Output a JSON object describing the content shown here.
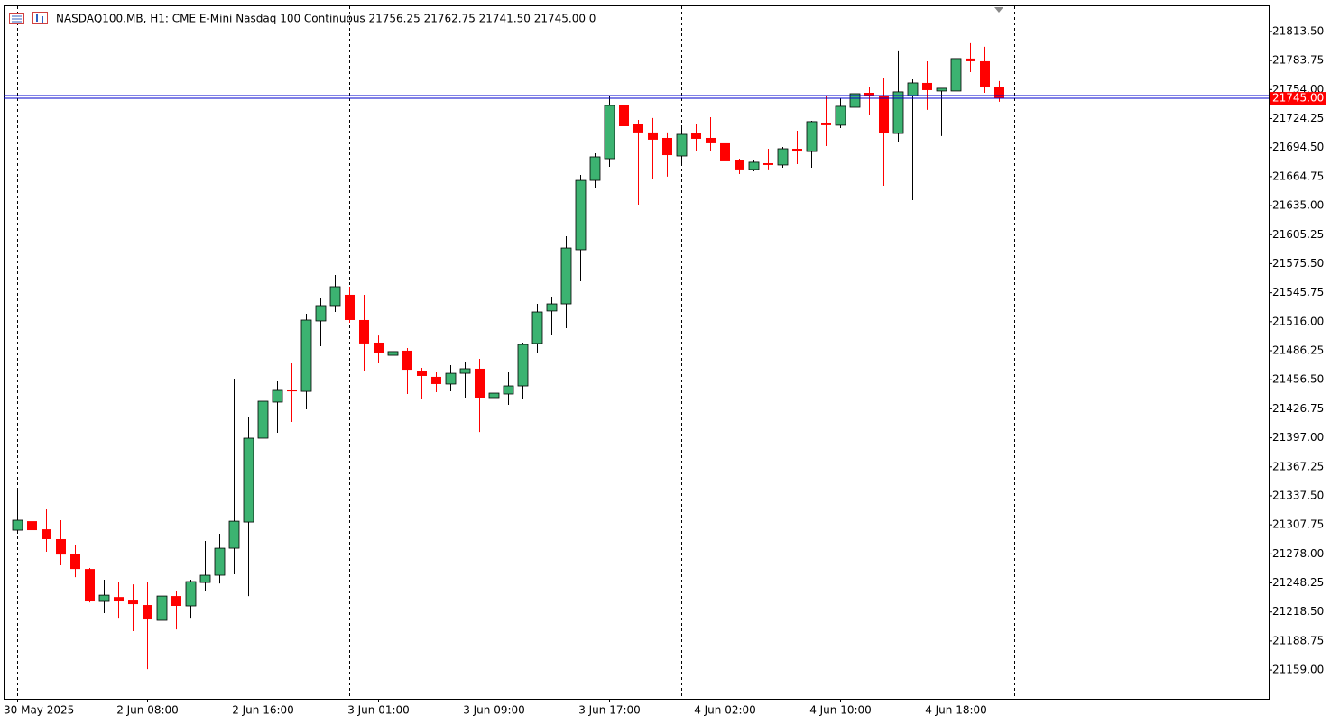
{
  "chart_data": {
    "type": "candlestick",
    "title": "NASDAQ100.MB, H1:  CME E-Mini Nasdaq 100 Continuous  21756.25 21762.75 21741.50 21745.00  0",
    "up_color": "#3cb371",
    "down_color": "#ff0000",
    "categories": [
      "30 May 2025",
      null,
      null,
      null,
      null,
      null,
      null,
      null,
      null,
      "2 Jun 08:00",
      null,
      null,
      null,
      null,
      null,
      null,
      null,
      "2 Jun 16:00",
      null,
      null,
      null,
      null,
      null,
      null,
      null,
      "3 Jun 01:00",
      null,
      null,
      null,
      null,
      null,
      null,
      null,
      "3 Jun 09:00",
      null,
      null,
      null,
      null,
      null,
      null,
      null,
      "3 Jun 17:00",
      null,
      null,
      null,
      null,
      null,
      null,
      null,
      "4 Jun 02:00",
      null,
      null,
      null,
      null,
      null,
      null,
      null,
      "4 Jun 10:00",
      null,
      null,
      null,
      null,
      null,
      null,
      null,
      "4 Jun 18:00",
      null,
      null,
      null
    ],
    "open": [
      21302.3,
      21311.5,
      21303.2,
      21293.1,
      21278.3,
      21262.5,
      21229.3,
      21233.8,
      21230.2,
      21225.6,
      21209.9,
      21234.8,
      21224.7,
      21248.7,
      21256.1,
      21283.8,
      21310.6,
      21396.6,
      21433.6,
      21445.6,
      21444.6,
      21516.8,
      21532.5,
      21543.6,
      21517.7,
      21494.6,
      21481.6,
      21486.3,
      21465.9,
      21459.5,
      21452.1,
      21463.1,
      21467.8,
      21438.2,
      21441.9,
      21450.2,
      21493.7,
      21527.0,
      21534.3,
      21589.8,
      21660.9,
      21683.1,
      21737.7,
      21718.3,
      21710.0,
      21704.4,
      21685.9,
      21709.0,
      21704.4,
      21698.9,
      21681.3,
      21672.1,
      21678.5,
      21676.7,
      21693.3,
      21690.5,
      21720.1,
      21717.4,
      21735.8,
      21750.6,
      21747.9,
      21709.0,
      21747.9,
      21760.8,
      21752.5,
      21752.5,
      21785.8,
      21783.0,
      21756.25
    ],
    "high": [
      21345.7,
      21312.5,
      21324.5,
      21312.5,
      21286.6,
      21263.5,
      21251.5,
      21249.6,
      21246.8,
      21248.7,
      21263.5,
      21240.4,
      21251.5,
      21291.2,
      21298.6,
      21457.6,
      21418.8,
      21442.8,
      21454.8,
      21473.3,
      21524.2,
      21540.8,
      21563.9,
      21551.9,
      21543.6,
      21501.9,
      21490.0,
      21489.0,
      21468.7,
      21464.1,
      21471.5,
      21475.2,
      21477.9,
      21447.4,
      21464.1,
      21494.6,
      21534.3,
      21541.7,
      21603.6,
      21666.5,
      21688.7,
      21747.0,
      21759.9,
      21722.9,
      21724.8,
      21710.0,
      21716.4,
      21718.3,
      21725.7,
      21713.7,
      21683.1,
      21681.3,
      21693.3,
      21695.2,
      21711.8,
      21722.0,
      21747.0,
      21745.1,
      21758.0,
      21756.2,
      21766.3,
      21793.2,
      21764.5,
      21783.0,
      21755.3,
      21788.5,
      21801.5,
      21797.8,
      21762.75
    ],
    "low": [
      21300.5,
      21275.5,
      21280.1,
      21266.3,
      21254.2,
      21228.3,
      21217.3,
      21212.6,
      21198.8,
      21159.9,
      21206.2,
      21200.6,
      21212.6,
      21240.4,
      21247.7,
      21257.0,
      21234.8,
      21355.0,
      21402.1,
      21413.2,
      21426.2,
      21490.9,
      21526.0,
      21514.9,
      21465.0,
      21473.3,
      21476.1,
      21441.9,
      21437.3,
      21443.7,
      21444.7,
      21438.2,
      21403.0,
      21398.4,
      21430.8,
      21437.3,
      21483.5,
      21502.9,
      21509.4,
      21557.4,
      21653.6,
      21674.8,
      21714.6,
      21636.0,
      21662.8,
      21664.7,
      21676.7,
      21690.5,
      21690.5,
      21672.1,
      21667.4,
      21670.2,
      21672.1,
      21673.9,
      21677.6,
      21673.9,
      21696.1,
      21714.6,
      21719.2,
      21727.5,
      21655.4,
      21700.7,
      21640.6,
      21733.1,
      21706.3,
      21751.6,
      21771.9,
      21750.6,
      21741.5
    ],
    "close": [
      21312.5,
      21302.3,
      21293.1,
      21277.3,
      21262.5,
      21229.3,
      21235.7,
      21229.3,
      21226.5,
      21210.8,
      21234.8,
      21224.7,
      21249.6,
      21256.1,
      21283.8,
      21311.5,
      21396.6,
      21434.5,
      21445.6,
      21444.6,
      21517.7,
      21532.5,
      21551.9,
      21517.7,
      21493.7,
      21483.5,
      21485.4,
      21466.8,
      21460.4,
      21452.1,
      21463.1,
      21467.8,
      21438.2,
      21442.8,
      21450.2,
      21492.7,
      21526.0,
      21534.3,
      21591.6,
      21660.9,
      21685.0,
      21737.7,
      21716.4,
      21710.0,
      21702.6,
      21686.8,
      21708.1,
      21703.5,
      21698.9,
      21680.4,
      21672.1,
      21679.5,
      21676.7,
      21693.3,
      21690.5,
      21721.1,
      21717.4,
      21736.8,
      21749.7,
      21747.9,
      21709.0,
      21751.6,
      21760.8,
      21753.4,
      21755.3,
      21785.8,
      21783.0,
      21756.2,
      21745.0
    ],
    "last_price": {
      "value": 21745.0,
      "label": "21745.00"
    },
    "last_price_color": "#0000cc",
    "ylim": [
      21129.5,
      21840.25
    ],
    "yticks": [
      {
        "value": 21813.5,
        "label": "21813.50"
      },
      {
        "value": 21783.75,
        "label": "21783.75"
      },
      {
        "value": 21754.0,
        "label": "21754.00"
      },
      {
        "value": 21724.25,
        "label": "21724.25"
      },
      {
        "value": 21694.5,
        "label": "21694.50"
      },
      {
        "value": 21664.75,
        "label": "21664.75"
      },
      {
        "value": 21635.0,
        "label": "21635.00"
      },
      {
        "value": 21605.25,
        "label": "21605.25"
      },
      {
        "value": 21575.5,
        "label": "21575.50"
      },
      {
        "value": 21545.75,
        "label": "21545.75"
      },
      {
        "value": 21516.0,
        "label": "21516.00"
      },
      {
        "value": 21486.25,
        "label": "21486.25"
      },
      {
        "value": 21456.5,
        "label": "21456.50"
      },
      {
        "value": 21426.75,
        "label": "21426.75"
      },
      {
        "value": 21397.0,
        "label": "21397.00"
      },
      {
        "value": 21367.25,
        "label": "21367.25"
      },
      {
        "value": 21337.5,
        "label": "21337.50"
      },
      {
        "value": 21307.75,
        "label": "21307.75"
      },
      {
        "value": 21278.0,
        "label": "21278.00"
      },
      {
        "value": 21248.25,
        "label": "21248.25"
      },
      {
        "value": 21218.5,
        "label": "21218.50"
      },
      {
        "value": 21188.75,
        "label": "21188.75"
      },
      {
        "value": 21159.0,
        "label": "21159.00"
      }
    ]
  }
}
